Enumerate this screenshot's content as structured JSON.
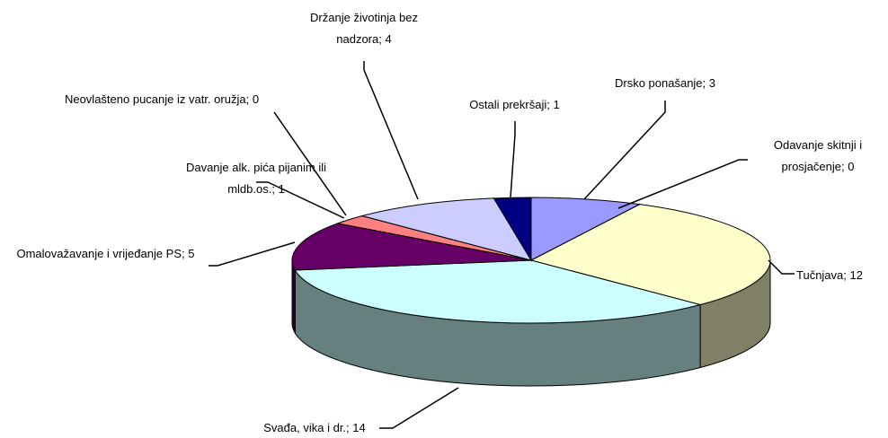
{
  "chart_data": {
    "type": "pie3d",
    "categories": [
      "Drsko ponašanje",
      "Odavanje skitnji i prosjačenje",
      "Tučnjava",
      "Svađa, vika i dr.",
      "Omalovažavanje i vrijeđanje PS",
      "Davanje alk. pića pijanim ili mldb.os.",
      "Neovlašteno pucanje iz vatr. oružja",
      "Držanje životinja bez nadzora",
      "Ostali prekršaji"
    ],
    "values": [
      3,
      0,
      12,
      14,
      5,
      1,
      0,
      4,
      1
    ],
    "colors": [
      "#9999ff",
      "#993366",
      "#ffffcc",
      "#ccffff",
      "#660066",
      "#ff8080",
      "#0066cc",
      "#ccccff",
      "#000080"
    ],
    "label_separator": "; "
  }
}
